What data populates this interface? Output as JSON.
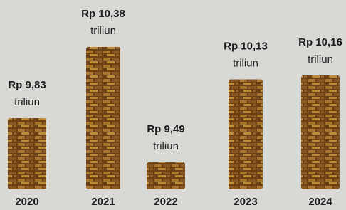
{
  "chart_data": {
    "type": "bar",
    "categories": [
      "2020",
      "2021",
      "2022",
      "2023",
      "2024"
    ],
    "values": [
      9.83,
      10.38,
      9.49,
      10.13,
      10.16
    ],
    "value_labels": [
      "Rp 9,83",
      "Rp 10,38",
      "Rp 9,49",
      "Rp 10,13",
      "Rp 10,16"
    ],
    "unit": "triliun",
    "color": "#7a4a1c"
  }
}
